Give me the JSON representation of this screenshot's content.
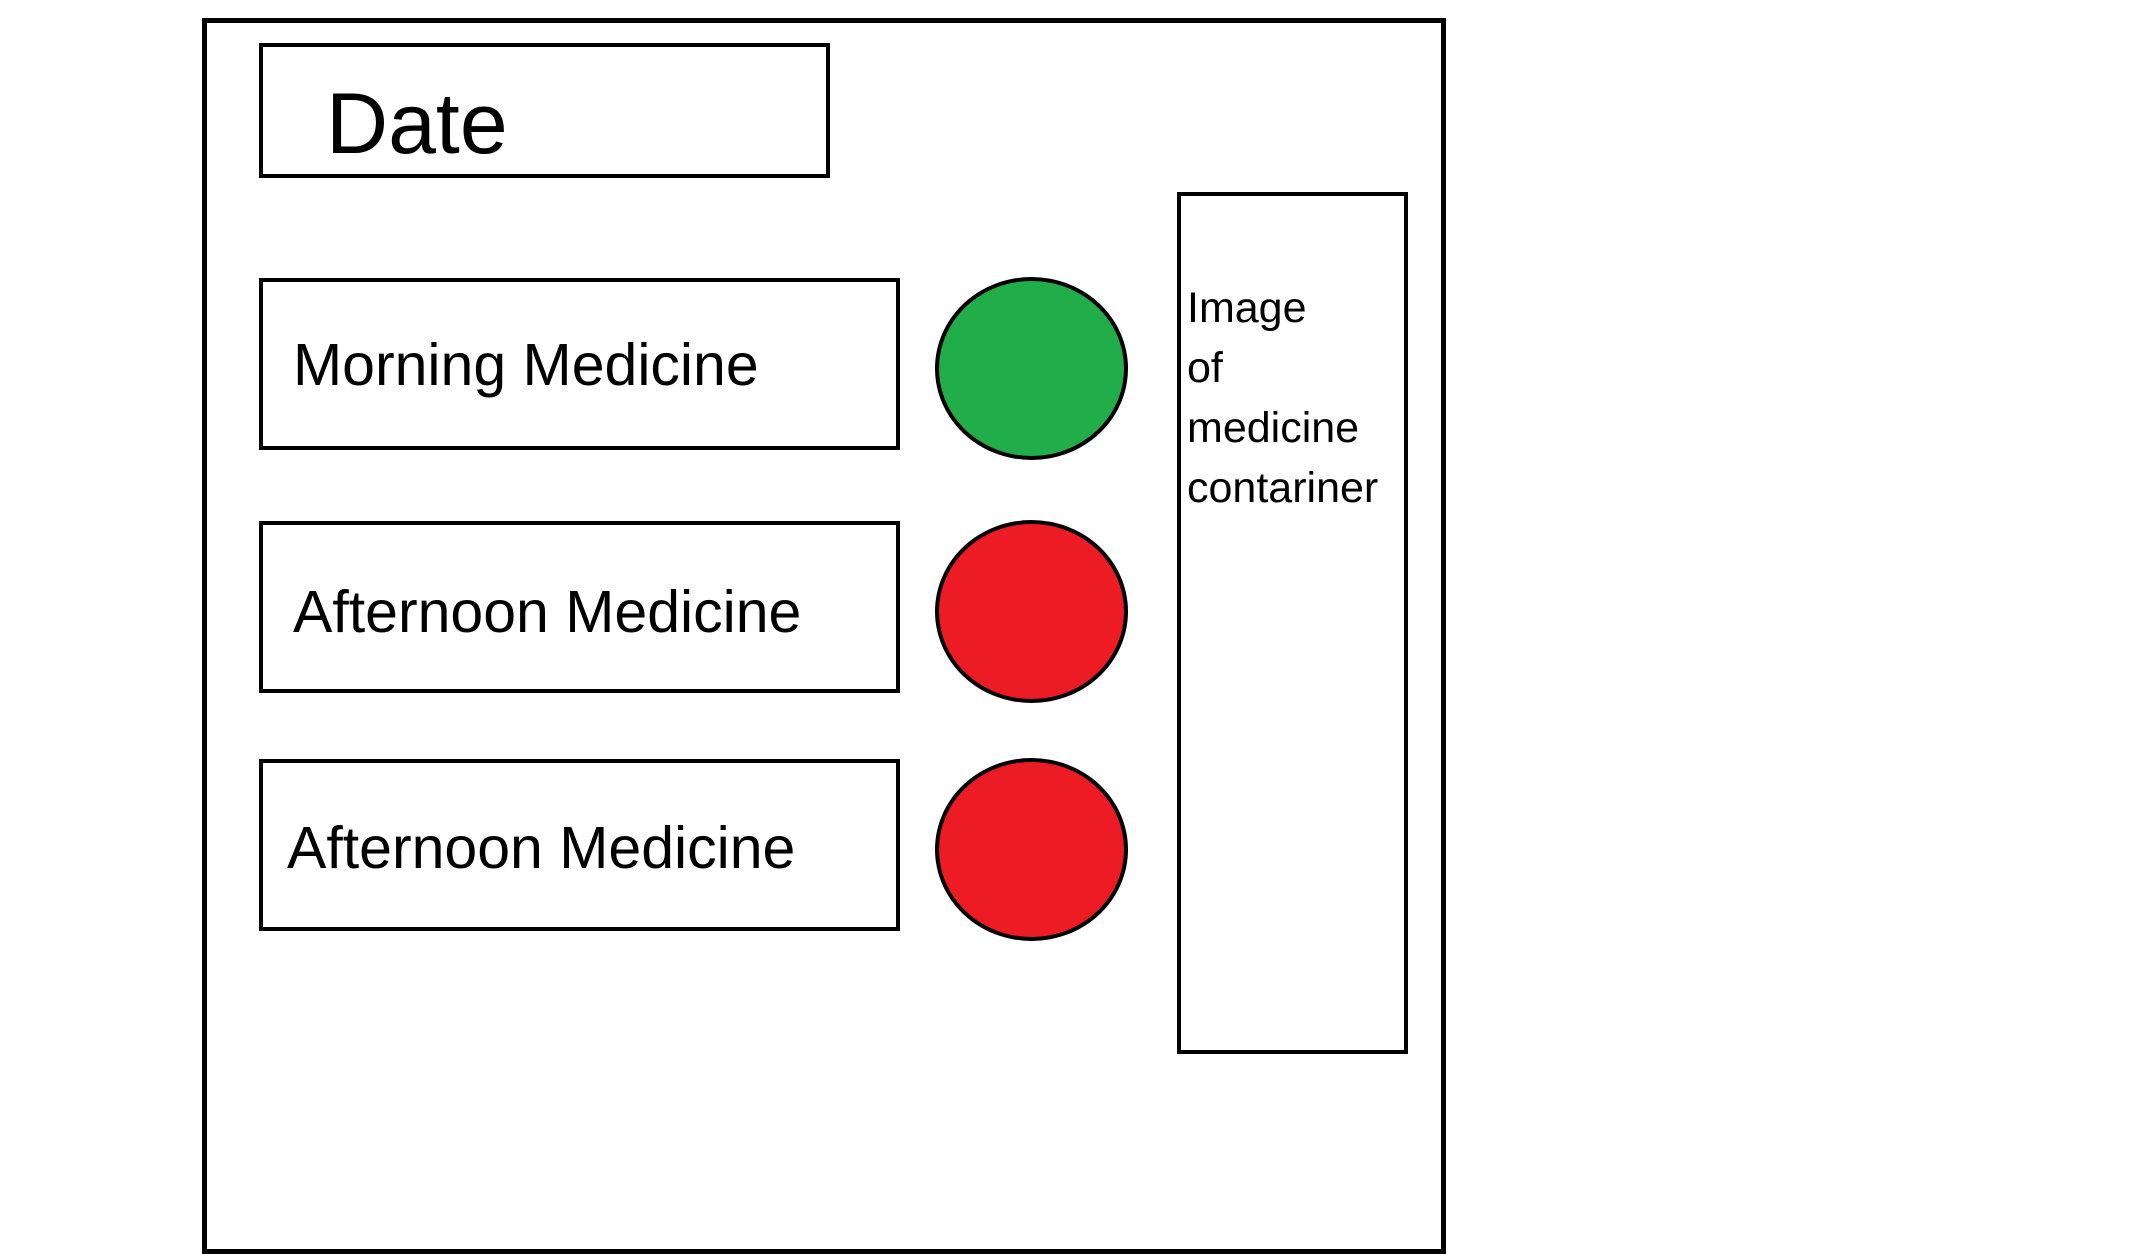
{
  "header": {
    "date_label": "Date"
  },
  "schedule": {
    "items": [
      {
        "label": "Morning Medicine",
        "status_color": "#22ad4b"
      },
      {
        "label": "Afternoon Medicine",
        "status_color": "#ed1c24"
      },
      {
        "label": "Afternoon Medicine",
        "status_color": "#ed1c24"
      }
    ]
  },
  "image_panel": {
    "lines": [
      "Image",
      "of",
      "medicine",
      "contariner"
    ]
  },
  "colors": {
    "border": "#000000",
    "background": "#ffffff",
    "taken": "#22ad4b",
    "not_taken": "#ed1c24"
  }
}
